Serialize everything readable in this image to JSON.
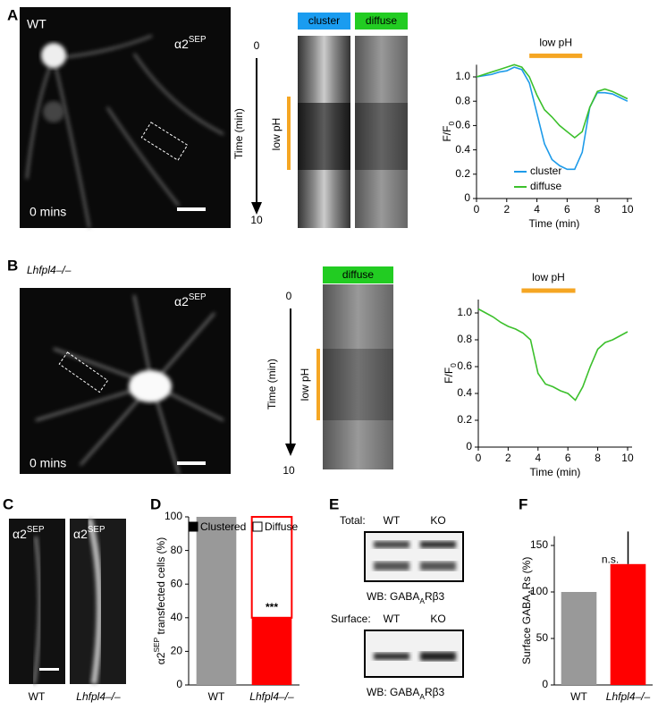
{
  "panel_letters": [
    "A",
    "B",
    "C",
    "D",
    "E",
    "F"
  ],
  "marker": [
    {
      "text": "α2"
    },
    {
      "text": "SEP",
      "shift": "super"
    }
  ],
  "panel_a": {
    "genotype": "WT",
    "time": "0 mins",
    "kymograph": {
      "labels": [
        "cluster",
        "diffuse"
      ],
      "lim": [
        0,
        10
      ],
      "axis": "Time (min)",
      "treatment": "low pH"
    }
  },
  "panel_b": {
    "genotype": "Lhfpl4–/–",
    "time": "0 mins",
    "kymograph": {
      "labels": [
        "diffuse"
      ],
      "lim": [
        0,
        10
      ],
      "axis": "Time (min)",
      "treatment": "low pH"
    }
  },
  "panel_c": {
    "categories": [
      "WT",
      "Lhfpl4–/–"
    ]
  },
  "panel_e": {
    "blots": [
      {
        "title": "Total:",
        "lanes": [
          "WT",
          "KO"
        ],
        "caption": [
          {
            "text": "WB: GABA"
          },
          {
            "text": "A",
            "shift": "sub"
          },
          {
            "text": "Rβ3"
          }
        ]
      },
      {
        "title": "Surface:",
        "lanes": [
          "WT",
          "KO"
        ],
        "caption": [
          {
            "text": "WB: GABA"
          },
          {
            "text": "A",
            "shift": "sub"
          },
          {
            "text": "Rβ3"
          }
        ]
      }
    ]
  },
  "chart_data": [
    {
      "type": "line",
      "xlabel": "Time (min)",
      "ylabel": [
        {
          "text": "F/F"
        },
        {
          "text": "0",
          "shift": "sub"
        }
      ],
      "x": [
        0,
        0.5,
        1,
        1.5,
        2,
        2.5,
        3,
        3.5,
        4,
        4.5,
        5,
        5.5,
        6,
        6.5,
        7,
        7.5,
        8,
        8.5,
        9,
        9.5,
        10
      ],
      "series": [
        {
          "name": "cluster",
          "color": "#1e9be9",
          "values": [
            1.0,
            1.01,
            1.02,
            1.04,
            1.05,
            1.08,
            1.06,
            0.95,
            0.7,
            0.45,
            0.32,
            0.27,
            0.24,
            0.24,
            0.38,
            0.75,
            0.87,
            0.87,
            0.86,
            0.83,
            0.8
          ]
        },
        {
          "name": "diffuse",
          "color": "#3cc02c",
          "values": [
            1.0,
            1.02,
            1.04,
            1.06,
            1.08,
            1.1,
            1.08,
            1.0,
            0.85,
            0.73,
            0.67,
            0.6,
            0.55,
            0.5,
            0.55,
            0.75,
            0.88,
            0.9,
            0.88,
            0.85,
            0.82
          ]
        }
      ],
      "xlim": [
        0,
        10.3
      ],
      "xticks": [
        0,
        2,
        4,
        6,
        8,
        10
      ],
      "ylim": [
        0,
        1.1
      ],
      "yticks": [
        0,
        0.2,
        0.4,
        0.6,
        0.8,
        {
          "value": 1.0,
          "label": "1.0"
        }
      ],
      "treatment": {
        "label": "low pH",
        "x": [
          3.5,
          7
        ],
        "color": "#f5a623"
      },
      "legend": true
    },
    {
      "type": "line",
      "xlabel": "Time (min)",
      "ylabel": [
        {
          "text": "F/F"
        },
        {
          "text": "0",
          "shift": "sub"
        }
      ],
      "x": [
        0,
        0.5,
        1,
        1.5,
        2,
        2.5,
        3,
        3.5,
        4,
        4.5,
        5,
        5.5,
        6,
        6.5,
        7,
        7.5,
        8,
        8.5,
        9,
        9.5,
        10
      ],
      "series": [
        {
          "name": "diffuse",
          "color": "#3cc02c",
          "values": [
            1.03,
            1.0,
            0.97,
            0.93,
            0.9,
            0.88,
            0.85,
            0.8,
            0.55,
            0.47,
            0.45,
            0.42,
            0.4,
            0.35,
            0.45,
            0.6,
            0.73,
            0.78,
            0.8,
            0.83,
            0.86
          ]
        }
      ],
      "xlim": [
        0,
        10.3
      ],
      "xticks": [
        0,
        2,
        4,
        6,
        8,
        10
      ],
      "ylim": [
        0,
        1.1
      ],
      "yticks": [
        0,
        0.2,
        0.4,
        0.6,
        0.8,
        {
          "value": 1.0,
          "label": "1.0"
        }
      ],
      "treatment": {
        "label": "low pH",
        "x": [
          2.9,
          6.5
        ],
        "color": "#f5a623"
      },
      "legend": false
    },
    {
      "type": "stacked_bar",
      "ylabel": [
        {
          "text": "α2"
        },
        {
          "text": "SEP",
          "shift": "super"
        },
        {
          "text": " transfected cells (%)"
        }
      ],
      "categories": [
        "WT",
        "Lhfpl4–/–"
      ],
      "series": [
        {
          "name": "Clustered",
          "color": "#000000",
          "bar_colors": [
            "#999999",
            "#ff0000"
          ],
          "values": [
            100,
            40
          ]
        },
        {
          "name": "Diffuse",
          "color": "#ffffff",
          "bar_colors": [
            "#ffffff",
            "#ffffff"
          ],
          "edge_colors": [
            "#ff0000",
            "#ff0000"
          ],
          "values": [
            0,
            60
          ]
        }
      ],
      "ylim": [
        0,
        100
      ],
      "yticks": [
        0,
        20,
        40,
        60,
        80,
        100
      ],
      "annotation": "***"
    },
    {
      "type": "bar",
      "ylabel": [
        {
          "text": "Surface GABA"
        },
        {
          "text": "A",
          "shift": "sub"
        },
        {
          "text": "Rs (%)"
        }
      ],
      "categories": [
        "WT",
        "Lhfpl4–/–"
      ],
      "values": [
        100,
        130
      ],
      "errors": [
        null,
        35
      ],
      "colors": [
        "#999999",
        "#ff0000"
      ],
      "ylim": [
        0,
        160
      ],
      "yticks": [
        0,
        50,
        100,
        150
      ],
      "annotation": "n.s."
    }
  ]
}
